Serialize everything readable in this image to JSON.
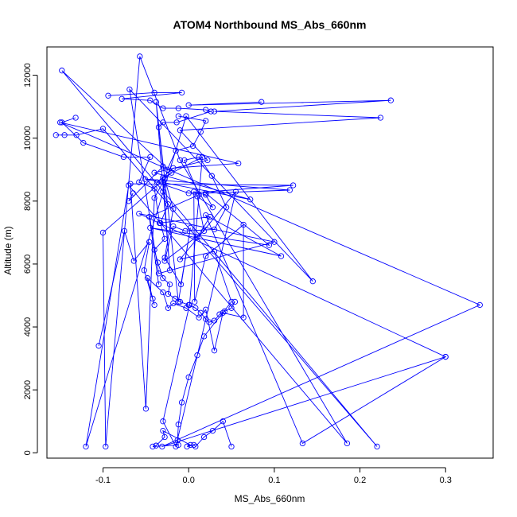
{
  "chart_data": {
    "type": "line",
    "title": "ATOM4 Northbound MS_Abs_660nm",
    "xlabel": "MS_Abs_660nm",
    "ylabel": "Altitude (m)",
    "x_ticks": [
      -0.1,
      0.0,
      0.1,
      0.2,
      0.3
    ],
    "x_tick_labels": [
      "-0.1",
      "0.0",
      "0.1",
      "0.2",
      "0.3"
    ],
    "y_ticks": [
      0,
      2000,
      4000,
      6000,
      8000,
      10000,
      12000
    ],
    "y_tick_labels": [
      "0",
      "2000",
      "4000",
      "6000",
      "8000",
      "10000",
      "12000"
    ],
    "xlim": [
      -0.1655,
      0.3555
    ],
    "ylim": [
      -170,
      12900
    ],
    "marker": "open-circle",
    "line_color": "#0000ff",
    "grid": false,
    "series": [
      {
        "points": [
          [
            -0.155,
            10100
          ],
          [
            -0.145,
            10100
          ],
          [
            -0.131,
            10100
          ],
          [
            -0.1,
            10300
          ],
          [
            0.22,
            200
          ],
          [
            -0.148,
            12150
          ],
          [
            -0.02,
            8900
          ],
          [
            -0.1,
            7000
          ],
          [
            -0.097,
            200
          ],
          [
            -0.057,
            12600
          ],
          [
            -0.01,
            9300
          ],
          [
            0.185,
            300
          ],
          [
            -0.07,
            8500
          ],
          [
            -0.12,
            200
          ],
          [
            -0.003,
            10700
          ],
          [
            0.145,
            5450
          ],
          [
            -0.069,
            11550
          ],
          [
            -0.035,
            5700
          ],
          [
            0.1,
            6700
          ],
          [
            -0.058,
            7600
          ],
          [
            0.3,
            3050
          ],
          [
            -0.031,
            200
          ],
          [
            0.34,
            4700
          ],
          [
            -0.15,
            10500
          ],
          [
            0.058,
            9200
          ],
          [
            -0.018,
            9050
          ],
          [
            -0.037,
            8600
          ],
          [
            0.0,
            8250
          ],
          [
            0.122,
            8500
          ],
          [
            -0.068,
            8550
          ],
          [
            -0.05,
            1400
          ],
          [
            -0.04,
            8100
          ],
          [
            -0.028,
            8700
          ],
          [
            -0.018,
            7750
          ],
          [
            -0.028,
            6200
          ],
          [
            -0.009,
            5350
          ],
          [
            0.002,
            7150
          ],
          [
            -0.012,
            4800
          ],
          [
            -0.038,
            11150
          ],
          [
            -0.022,
            5800
          ],
          [
            -0.03,
            8750
          ],
          [
            0.016,
            9400
          ],
          [
            0.001,
            4700
          ],
          [
            -0.03,
            1000
          ],
          [
            -0.015,
            200
          ],
          [
            0.055,
            8300
          ],
          [
            -0.01,
            6150
          ],
          [
            0.03,
            6400
          ],
          [
            0.05,
            4800
          ],
          [
            0.018,
            3700
          ],
          [
            0.01,
            3100
          ],
          [
            0.0,
            2400
          ],
          [
            -0.008,
            1600
          ],
          [
            -0.012,
            900
          ],
          [
            -0.013,
            400
          ],
          [
            -0.012,
            250
          ],
          [
            -0.042,
            200
          ],
          [
            -0.038,
            230
          ],
          [
            -0.028,
            500
          ],
          [
            -0.03,
            700
          ],
          [
            0.002,
            250
          ],
          [
            -0.002,
            200
          ],
          [
            0.006,
            250
          ],
          [
            0.008,
            200
          ],
          [
            0.018,
            500
          ],
          [
            0.028,
            700
          ],
          [
            0.04,
            1000
          ],
          [
            0.05,
            200
          ]
        ]
      },
      {
        "points": [
          [
            0.085,
            11150
          ],
          [
            0.0,
            11050
          ],
          [
            0.236,
            11200
          ],
          [
            0.03,
            10850
          ],
          [
            0.224,
            10650
          ],
          [
            -0.01,
            10250
          ],
          [
            0.022,
            9300
          ],
          [
            -0.04,
            8900
          ],
          [
            0.072,
            8050
          ],
          [
            -0.051,
            8700
          ],
          [
            0.118,
            8350
          ],
          [
            0.02,
            8250
          ],
          [
            0.094,
            6600
          ],
          [
            -0.045,
            7150
          ],
          [
            0.108,
            6250
          ],
          [
            0.02,
            7550
          ],
          [
            0.133,
            300
          ],
          [
            0.3,
            3050
          ]
        ]
      },
      {
        "points": [
          [
            -0.105,
            3400
          ],
          [
            -0.075,
            7050
          ],
          [
            -0.064,
            6100
          ],
          [
            -0.046,
            6700
          ],
          [
            -0.052,
            5800
          ],
          [
            -0.04,
            4700
          ],
          [
            -0.042,
            4900
          ],
          [
            -0.048,
            5550
          ],
          [
            -0.03,
            5100
          ],
          [
            -0.024,
            4600
          ],
          [
            -0.018,
            4750
          ],
          [
            -0.003,
            4600
          ],
          [
            0.012,
            4300
          ],
          [
            0.02,
            4550
          ],
          [
            0.03,
            3250
          ],
          [
            0.04,
            4450
          ],
          [
            0.064,
            4300
          ],
          [
            0.064,
            7250
          ],
          [
            0.02,
            6250
          ],
          [
            0.007,
            4800
          ],
          [
            0.006,
            8300
          ],
          [
            0.02,
            8200
          ],
          [
            0.028,
            7800
          ],
          [
            0.01,
            8150
          ],
          [
            0.018,
            7050
          ],
          [
            -0.028,
            6100
          ],
          [
            -0.018,
            7200
          ],
          [
            -0.004,
            7050
          ],
          [
            0.03,
            7100
          ],
          [
            0.044,
            7800
          ],
          [
            0.027,
            8800
          ],
          [
            0.012,
            9400
          ],
          [
            -0.005,
            9300
          ],
          [
            0.012,
            8200
          ],
          [
            -0.046,
            7500
          ],
          [
            -0.035,
            5350
          ]
        ]
      },
      {
        "points": [
          [
            -0.094,
            11350
          ],
          [
            -0.04,
            11450
          ],
          [
            -0.008,
            11450
          ],
          [
            -0.078,
            11250
          ],
          [
            -0.045,
            11200
          ],
          [
            -0.03,
            10950
          ],
          [
            -0.012,
            10950
          ],
          [
            0.02,
            10900
          ],
          [
            0.026,
            10850
          ],
          [
            -0.014,
            10500
          ],
          [
            -0.03,
            10500
          ],
          [
            -0.035,
            10350
          ],
          [
            -0.03,
            9100
          ],
          [
            -0.07,
            8000
          ],
          [
            -0.065,
            8250
          ]
        ]
      },
      {
        "points": [
          [
            -0.132,
            10650
          ],
          [
            -0.148,
            10500
          ],
          [
            -0.123,
            9850
          ],
          [
            -0.076,
            9400
          ],
          [
            -0.045,
            9400
          ],
          [
            -0.058,
            8600
          ],
          [
            -0.04,
            8400
          ],
          [
            -0.034,
            7300
          ],
          [
            0.025,
            7500
          ],
          [
            0.01,
            6850
          ]
        ]
      },
      {
        "points": [
          [
            -0.012,
            10700
          ],
          [
            0.02,
            10550
          ],
          [
            0.014,
            10200
          ],
          [
            0.005,
            9750
          ],
          [
            -0.015,
            9600
          ],
          [
            -0.025,
            9000
          ],
          [
            -0.03,
            8300
          ],
          [
            -0.024,
            7900
          ],
          [
            -0.033,
            7300
          ],
          [
            -0.028,
            6800
          ],
          [
            -0.04,
            6450
          ],
          [
            -0.036,
            6050
          ],
          [
            -0.03,
            5550
          ],
          [
            -0.022,
            5350
          ],
          [
            -0.024,
            5050
          ],
          [
            -0.016,
            4900
          ],
          [
            -0.01,
            4800
          ],
          [
            0.0,
            4700
          ],
          [
            0.008,
            4600
          ],
          [
            0.014,
            4450
          ],
          [
            0.02,
            4250
          ],
          [
            0.024,
            4150
          ],
          [
            0.03,
            4200
          ],
          [
            0.036,
            4400
          ],
          [
            0.042,
            4500
          ],
          [
            0.05,
            4600
          ],
          [
            0.054,
            4800
          ]
        ]
      }
    ]
  }
}
